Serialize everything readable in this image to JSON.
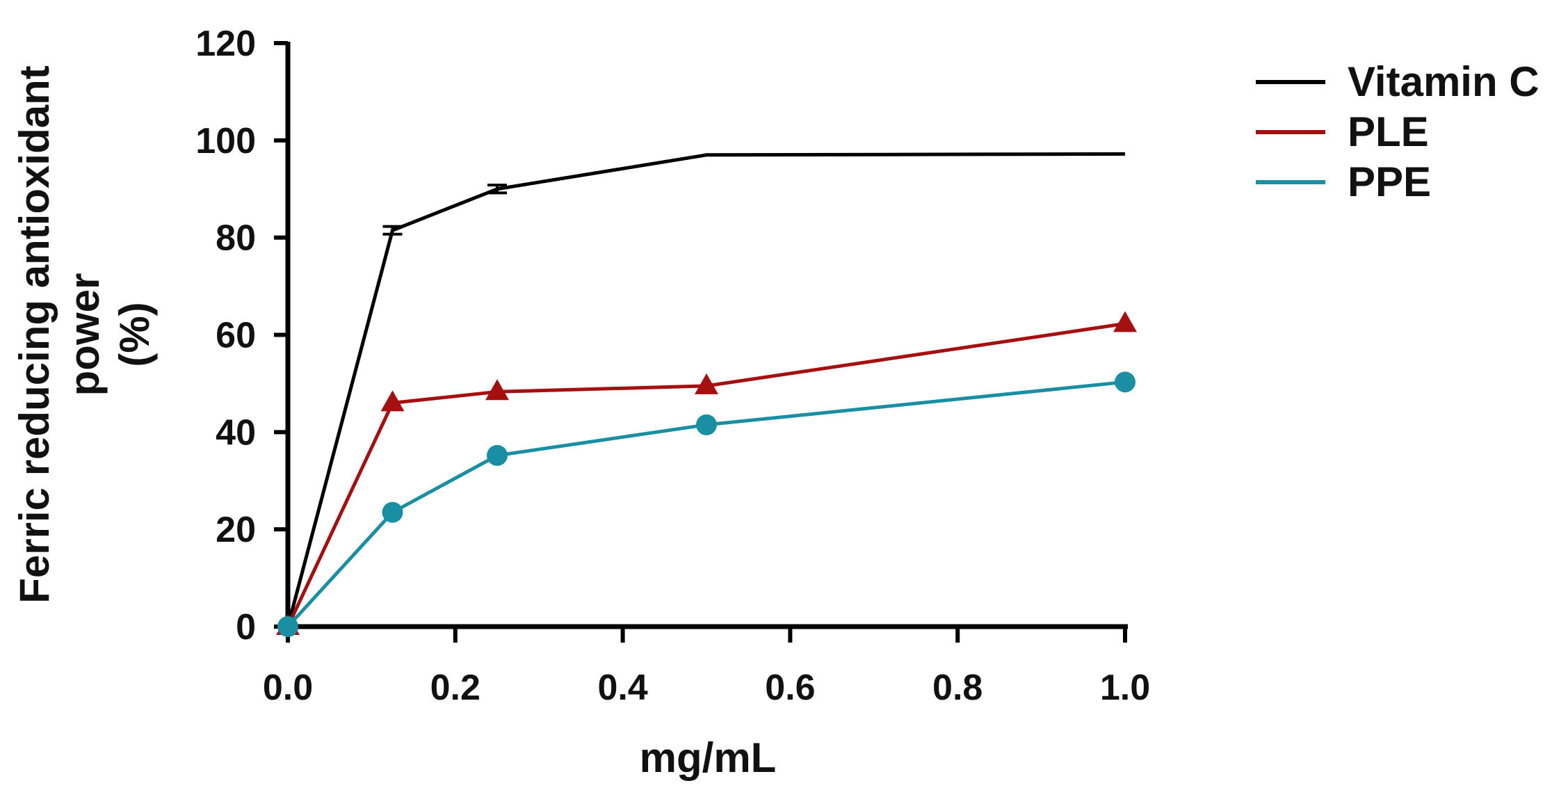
{
  "chart_data": {
    "type": "line",
    "title": "",
    "xlabel": "mg/mL",
    "ylabel_lines": [
      "Ferric reducing antioxidant",
      "power",
      "(%)"
    ],
    "xlim": [
      0,
      1.0
    ],
    "ylim": [
      0,
      120
    ],
    "xticks": [
      0.0,
      0.2,
      0.4,
      0.6,
      0.8,
      1.0
    ],
    "xtick_labels": [
      "0.0",
      "0.2",
      "0.4",
      "0.6",
      "0.8",
      "1.0"
    ],
    "yticks": [
      0,
      20,
      40,
      60,
      80,
      100,
      120
    ],
    "ytick_labels": [
      "0",
      "20",
      "40",
      "60",
      "80",
      "100",
      "120"
    ],
    "grid": false,
    "legend_position": "top-right",
    "series": [
      {
        "name": "Vitamin C",
        "color": "#000000",
        "marker": "none",
        "x": [
          0,
          0.125,
          0.25,
          0.5,
          1.0
        ],
        "y": [
          0,
          81.5,
          90,
          97,
          97.2
        ],
        "error": [
          0,
          0.8,
          0.8,
          0,
          0
        ]
      },
      {
        "name": "PLE",
        "color": "#a50f0f",
        "marker": "triangle",
        "x": [
          0,
          0.125,
          0.25,
          0.5,
          1.0
        ],
        "y": [
          0,
          46,
          48.3,
          49.5,
          62.3
        ]
      },
      {
        "name": "PPE",
        "color": "#1a8ea3",
        "marker": "circle",
        "x": [
          0,
          0.125,
          0.25,
          0.5,
          1.0
        ],
        "y": [
          0,
          23.5,
          35.2,
          41.5,
          50.3
        ]
      }
    ]
  }
}
